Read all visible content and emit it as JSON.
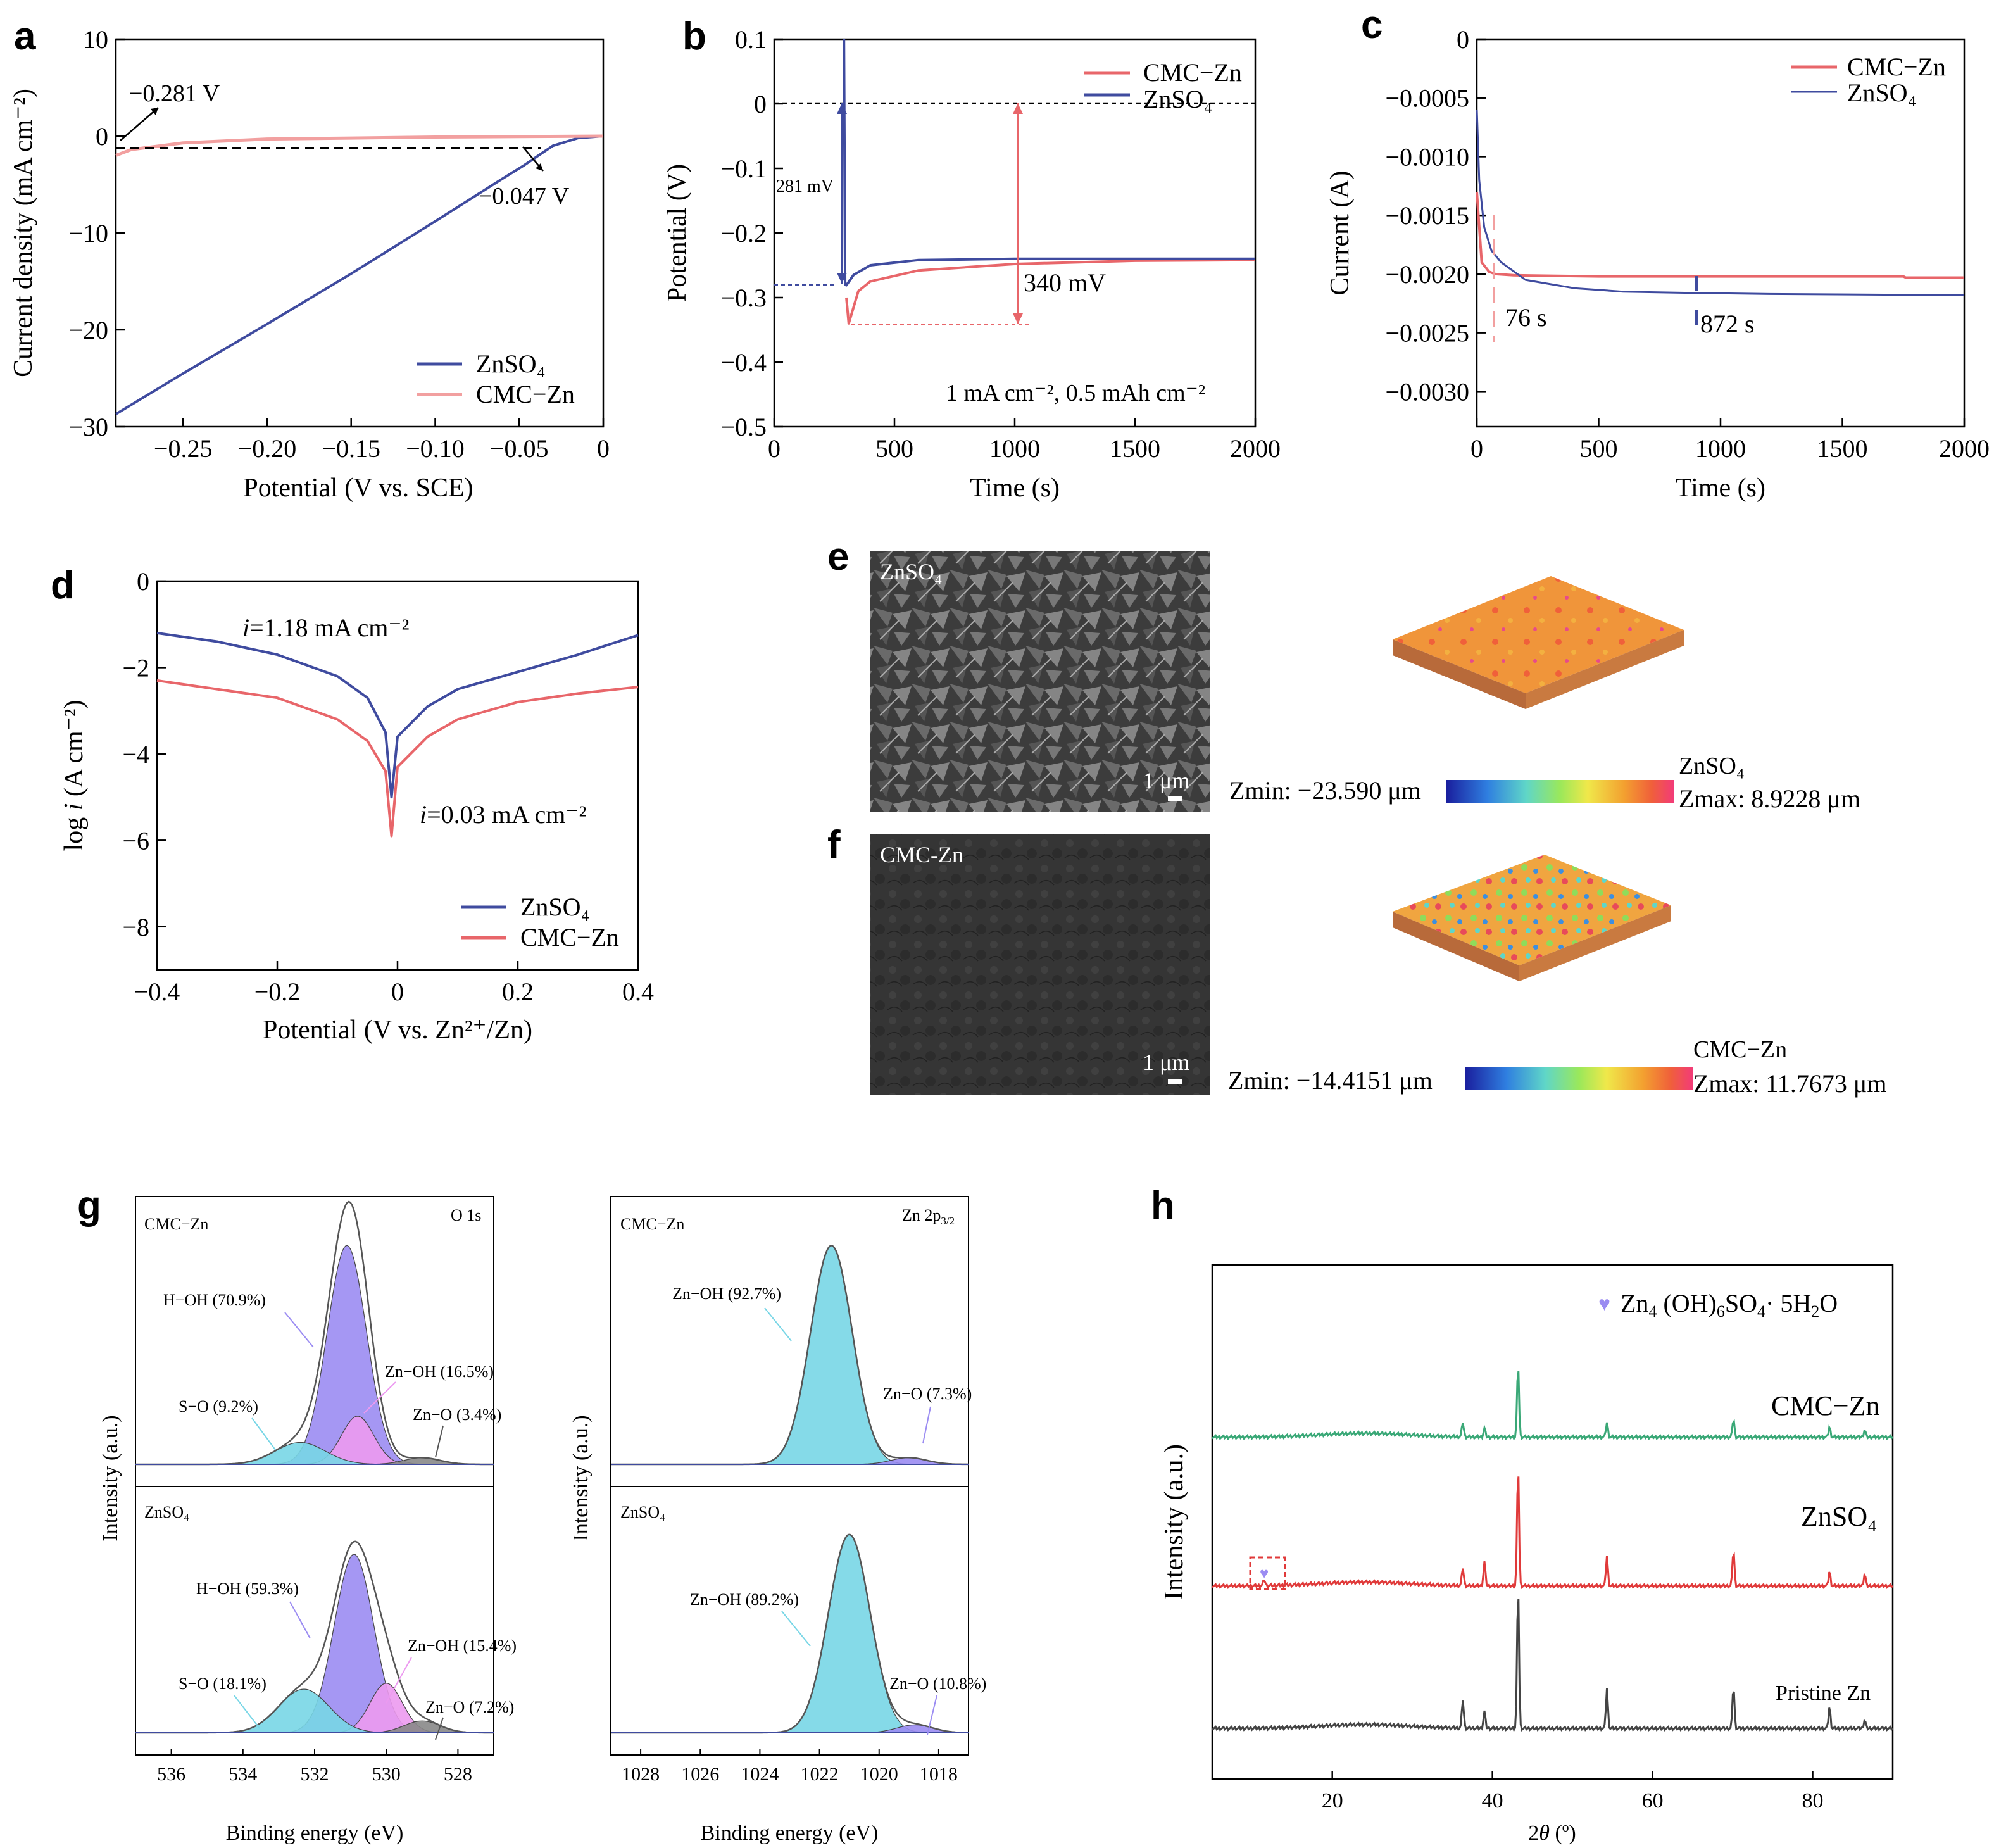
{
  "panels": {
    "a": {
      "letter": "a",
      "xlabel": "Potential (V vs. SCE)",
      "ylabel": "Current density (mA cm⁻²)",
      "xticks": [
        "−0.25",
        "−0.20",
        "−0.15",
        "−0.10",
        "−0.05",
        "0"
      ],
      "yticks": [
        "10",
        "0",
        "−10",
        "−20",
        "−30"
      ],
      "ann1": "−0.281 V",
      "ann2": "−0.047 V",
      "legend": [
        "ZnSO₄",
        "CMC−Zn"
      ]
    },
    "b": {
      "letter": "b",
      "xlabel": "Time (s)",
      "ylabel": "Potential (V)",
      "xticks": [
        "0",
        "500",
        "1000",
        "1500",
        "2000"
      ],
      "yticks": [
        "0.1",
        "0",
        "−0.1",
        "−0.2",
        "−0.3",
        "−0.4",
        "−0.5"
      ],
      "ann_281": "281 mV",
      "ann_340": "340 mV",
      "condition": "1 mA cm⁻², 0.5 mAh cm⁻²",
      "legend": [
        "CMC−Zn",
        "ZnSO₄"
      ]
    },
    "c": {
      "letter": "c",
      "xlabel": "Time (s)",
      "ylabel": "Current (A)",
      "xticks": [
        "0",
        "500",
        "1000",
        "1500",
        "2000"
      ],
      "yticks": [
        "0",
        "−0.0005",
        "−0.0010",
        "−0.0015",
        "−0.0020",
        "−0.0025",
        "−0.0030"
      ],
      "ann_76": "76 s",
      "ann_872": "872 s",
      "legend": [
        "CMC−Zn",
        "ZnSO₄"
      ]
    },
    "d": {
      "letter": "d",
      "xlabel": "Potential (V vs. Zn²⁺/Zn)",
      "ylabel": "log i (A cm⁻²)",
      "xticks": [
        "−0.4",
        "−0.2",
        "0",
        "0.2",
        "0.4"
      ],
      "yticks": [
        "0",
        "−2",
        "−4",
        "−6",
        "−8"
      ],
      "ann_top": "i=1.18 mA cm⁻²",
      "ann_bottom": "i=0.03 mA cm⁻²",
      "legend": [
        "ZnSO₄",
        "CMC−Zn"
      ]
    },
    "e": {
      "letter": "e",
      "image_label": "ZnSO₄",
      "scale": "1 μm",
      "cbar_title": "ZnSO₄",
      "zmin": "Zmin: −23.590 μm",
      "zmax": "Zmax: 8.9228 μm"
    },
    "f": {
      "letter": "f",
      "image_label": "CMC-Zn",
      "scale": "1 μm",
      "cbar_title": "CMC−Zn",
      "zmin": "Zmin: −14.4151 μm",
      "zmax": "Zmax: 11.7673 μm"
    },
    "g": {
      "letter": "g",
      "xlabel": "Binding energy (eV)",
      "ylabel": "Intensity (a.u.)",
      "o1s": {
        "title": "O 1s",
        "xticks": [
          "536",
          "534",
          "532",
          "530",
          "528"
        ],
        "top": {
          "sample": "CMC−Zn",
          "peaks": [
            "H−OH (70.9%)",
            "Zn−OH (16.5%)",
            "S−O (9.2%)",
            "Zn−O (3.4%)"
          ]
        },
        "bottom": {
          "sample": "ZnSO₄",
          "peaks": [
            "H−OH (59.3%)",
            "Zn−OH (15.4%)",
            "S−O (18.1%)",
            "Zn−O (7.2%)"
          ]
        }
      },
      "zn2p": {
        "title": "Zn 2p₃/₂",
        "xticks": [
          "1028",
          "1026",
          "1024",
          "1022",
          "1020",
          "1018"
        ],
        "top": {
          "sample": "CMC−Zn",
          "peaks": [
            "Zn−OH (92.7%)",
            "Zn−O (7.3%)"
          ]
        },
        "bottom": {
          "sample": "ZnSO₄",
          "peaks": [
            "Zn−OH (89.2%)",
            "Zn−O (10.8%)"
          ]
        }
      }
    },
    "h": {
      "letter": "h",
      "xlabel": "2θ (º)",
      "ylabel": "Intensity (a.u.)",
      "xticks": [
        "20",
        "40",
        "60",
        "80"
      ],
      "legend": "Zn₄ (OH)₆SO₄· 5H₂O",
      "traces": [
        "CMC−Zn",
        "ZnSO₄",
        "Pristine Zn"
      ]
    }
  },
  "colors": {
    "blue": "#3f4b9f",
    "red": "#e8666a",
    "pink": "#f2a0a0",
    "purple": "#9b8cf2",
    "magenta": "#ec9af0",
    "cyan": "#78d6e6",
    "green": "#3aa877",
    "xrd_red": "#e03a3a",
    "xrd_gray": "#444444"
  },
  "chart_data": [
    {
      "id": "a",
      "type": "line",
      "xlim": [
        -0.29,
        0.0
      ],
      "ylim": [
        -30,
        10
      ],
      "series": [
        {
          "name": "ZnSO₄",
          "x": [
            -0.29,
            -0.25,
            -0.2,
            -0.15,
            -0.1,
            -0.06,
            -0.047,
            -0.03,
            -0.015,
            0.0
          ],
          "y": [
            -28.7,
            -24.5,
            -19.4,
            -14.2,
            -8.8,
            -4.4,
            -3.0,
            -1.0,
            -0.2,
            0.0
          ]
        },
        {
          "name": "CMC−Zn",
          "x": [
            -0.29,
            -0.281,
            -0.25,
            -0.2,
            -0.15,
            -0.1,
            -0.05,
            0.0
          ],
          "y": [
            -2.0,
            -1.4,
            -0.7,
            -0.3,
            -0.2,
            -0.1,
            -0.05,
            0.0
          ]
        }
      ]
    },
    {
      "id": "b",
      "type": "line",
      "xlim": [
        0,
        2000
      ],
      "ylim": [
        -0.5,
        0.1
      ],
      "series": [
        {
          "name": "ZnSO₄",
          "x": [
            290,
            295,
            300,
            330,
            400,
            600,
            1000,
            1500,
            2000
          ],
          "y": [
            0.1,
            -0.28,
            -0.281,
            -0.265,
            -0.25,
            -0.242,
            -0.24,
            -0.24,
            -0.24
          ]
        },
        {
          "name": "CMC−Zn",
          "x": [
            300,
            310,
            350,
            400,
            600,
            1000,
            1500,
            2000
          ],
          "y": [
            -0.3,
            -0.34,
            -0.29,
            -0.275,
            -0.258,
            -0.248,
            -0.243,
            -0.242
          ]
        }
      ]
    },
    {
      "id": "c",
      "type": "line",
      "xlim": [
        0,
        2000
      ],
      "ylim": [
        -0.0033,
        0
      ],
      "series": [
        {
          "name": "CMC−Zn",
          "x": [
            0,
            20,
            50,
            76,
            150,
            500,
            1000,
            1750,
            1760,
            2000
          ],
          "y": [
            -0.0013,
            -0.0019,
            -0.00198,
            -0.002,
            -0.00201,
            -0.00202,
            -0.00202,
            -0.00202,
            -0.00203,
            -0.00203
          ]
        },
        {
          "name": "ZnSO₄",
          "x": [
            0,
            10,
            30,
            60,
            100,
            200,
            400,
            600,
            872,
            1200,
            2000
          ],
          "y": [
            -0.0006,
            -0.0012,
            -0.0016,
            -0.0018,
            -0.0019,
            -0.00205,
            -0.00212,
            -0.00215,
            -0.00216,
            -0.00217,
            -0.00218
          ]
        }
      ]
    },
    {
      "id": "d",
      "type": "line",
      "xlim": [
        -0.4,
        0.4
      ],
      "ylim": [
        -9,
        0
      ],
      "series": [
        {
          "name": "ZnSO₄",
          "x": [
            -0.4,
            -0.3,
            -0.2,
            -0.1,
            -0.05,
            -0.02,
            -0.01,
            0.0,
            0.05,
            0.1,
            0.2,
            0.3,
            0.4
          ],
          "y": [
            -1.2,
            -1.4,
            -1.7,
            -2.2,
            -2.7,
            -3.5,
            -5.0,
            -3.6,
            -2.9,
            -2.5,
            -2.1,
            -1.7,
            -1.25
          ]
        },
        {
          "name": "CMC−Zn",
          "x": [
            -0.4,
            -0.3,
            -0.2,
            -0.1,
            -0.05,
            -0.02,
            -0.01,
            0.0,
            0.05,
            0.1,
            0.2,
            0.3,
            0.4
          ],
          "y": [
            -2.3,
            -2.5,
            -2.7,
            -3.2,
            -3.7,
            -4.4,
            -5.9,
            -4.3,
            -3.6,
            -3.2,
            -2.8,
            -2.6,
            -2.45
          ]
        }
      ]
    },
    {
      "id": "g-o1s",
      "type": "line",
      "xlim": [
        537,
        527
      ],
      "peaks_top": [
        {
          "name": "H−OH (70.9%)",
          "center": 531.1,
          "height": 1.0
        },
        {
          "name": "Zn−OH (16.5%)",
          "center": 530.8,
          "height": 0.22
        },
        {
          "name": "S−O (9.2%)",
          "center": 532.4,
          "height": 0.1
        },
        {
          "name": "Zn−O (3.4%)",
          "center": 529.0,
          "height": 0.03
        }
      ],
      "peaks_bottom": [
        {
          "name": "H−OH (59.3%)",
          "center": 530.9,
          "height": 0.9
        },
        {
          "name": "Zn−OH (15.4%)",
          "center": 530.0,
          "height": 0.25
        },
        {
          "name": "S−O (18.1%)",
          "center": 532.3,
          "height": 0.22
        },
        {
          "name": "Zn−O (7.2%)",
          "center": 529.0,
          "height": 0.06
        }
      ]
    },
    {
      "id": "g-zn2p",
      "type": "line",
      "xlim": [
        1029,
        1017
      ],
      "peaks_top": [
        {
          "name": "Zn−OH (92.7%)",
          "center": 1021.6,
          "height": 1.0
        },
        {
          "name": "Zn−O (7.3%)",
          "center": 1019.0,
          "height": 0.03
        }
      ],
      "peaks_bottom": [
        {
          "name": "Zn−OH (89.2%)",
          "center": 1021.0,
          "height": 1.0
        },
        {
          "name": "Zn−O (10.8%)",
          "center": 1018.8,
          "height": 0.04
        }
      ]
    },
    {
      "id": "h",
      "type": "line",
      "xlim": [
        5,
        90
      ],
      "series": [
        {
          "name": "CMC−Zn",
          "peaks_2theta": [
            36.3,
            39.0,
            43.2,
            54.3,
            70.1,
            82.1,
            86.5
          ],
          "rel_intensity": [
            0.2,
            0.12,
            1.0,
            0.2,
            0.25,
            0.14,
            0.1
          ]
        },
        {
          "name": "ZnSO₄",
          "peaks_2theta": [
            11.5,
            36.3,
            39.0,
            43.2,
            54.3,
            70.1,
            82.1,
            86.5
          ],
          "rel_intensity": [
            0.05,
            0.15,
            0.2,
            1.0,
            0.25,
            0.3,
            0.12,
            0.1
          ]
        },
        {
          "name": "Pristine Zn",
          "peaks_2theta": [
            36.3,
            39.0,
            43.2,
            54.3,
            70.1,
            82.1,
            86.5
          ],
          "rel_intensity": [
            0.2,
            0.12,
            1.0,
            0.28,
            0.3,
            0.15,
            0.06
          ]
        }
      ]
    }
  ]
}
